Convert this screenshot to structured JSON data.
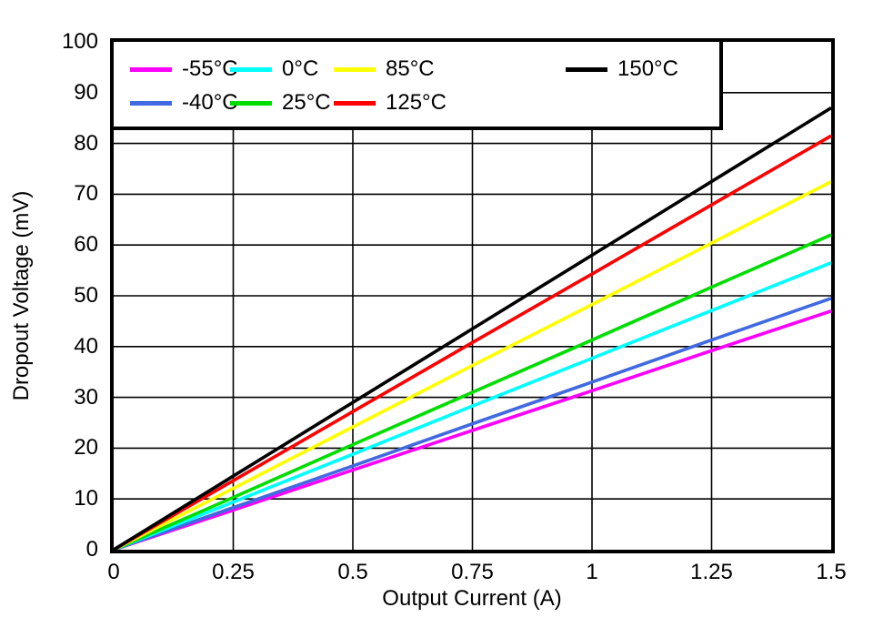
{
  "page": {
    "background": "#ffffff",
    "frame_color": "#000000"
  },
  "chart_data": {
    "type": "line",
    "title": "",
    "xlabel": "Output Current (A)",
    "ylabel": "Dropout Voltage (mV)",
    "xlim": [
      0,
      1.5
    ],
    "ylim": [
      0,
      100
    ],
    "grid": true,
    "legend_position": "top-left",
    "x_ticks": [
      0,
      0.25,
      0.5,
      0.75,
      1,
      1.25,
      1.5
    ],
    "x_tick_labels": [
      "0",
      "0.25",
      "0.5",
      "0.75",
      "1",
      "1.25",
      "1.5"
    ],
    "y_ticks": [
      0,
      10,
      20,
      30,
      40,
      50,
      60,
      70,
      80,
      90,
      100
    ],
    "y_tick_labels": [
      "0",
      "10",
      "20",
      "30",
      "40",
      "50",
      "60",
      "70",
      "80",
      "90",
      "100"
    ],
    "x": [
      0,
      0.25,
      0.5,
      0.75,
      1,
      1.25,
      1.5
    ],
    "series": [
      {
        "name": "-55°C",
        "color": "#FF00FF",
        "values": [
          0,
          7.8,
          15.7,
          23.5,
          31.3,
          39.2,
          47
        ]
      },
      {
        "name": "-40°C",
        "color": "#4169E1",
        "values": [
          0,
          8.3,
          16.5,
          24.8,
          33.0,
          41.3,
          49.5
        ]
      },
      {
        "name": "0°C",
        "color": "#00FFFF",
        "values": [
          0,
          9.4,
          18.8,
          28.3,
          37.7,
          47.1,
          56.5
        ]
      },
      {
        "name": "25°C",
        "color": "#00DD00",
        "values": [
          0,
          10.3,
          20.7,
          31.0,
          41.3,
          51.7,
          62
        ]
      },
      {
        "name": "85°C",
        "color": "#FFFF00",
        "values": [
          0,
          12.1,
          24.2,
          36.3,
          48.3,
          60.4,
          72.5
        ]
      },
      {
        "name": "125°C",
        "color": "#FF0000",
        "values": [
          0,
          13.6,
          27.2,
          40.8,
          54.3,
          67.9,
          81.5
        ]
      },
      {
        "name": "150°C",
        "color": "#000000",
        "values": [
          0,
          14.5,
          29.0,
          43.5,
          58.0,
          72.5,
          87
        ]
      }
    ]
  }
}
